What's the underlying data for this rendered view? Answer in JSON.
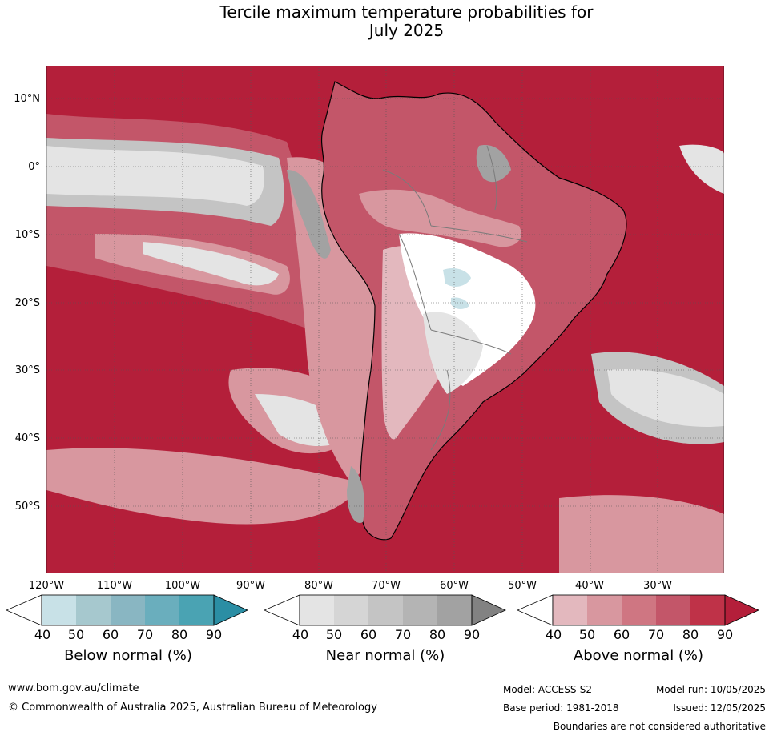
{
  "title_line1": "Tercile maximum temperature probabilities for",
  "title_line2": "July 2025",
  "lat_labels": [
    "10°N",
    "0°",
    "10°S",
    "20°S",
    "30°S",
    "40°S",
    "50°S"
  ],
  "lon_labels": [
    "120°W",
    "110°W",
    "100°W",
    "90°W",
    "80°W",
    "70°W",
    "60°W",
    "50°W",
    "40°W",
    "30°W"
  ],
  "colorbars": [
    {
      "label": "Below normal (%)",
      "ticks": [
        "40",
        "50",
        "60",
        "70",
        "80",
        "90"
      ],
      "colors": [
        "#ffffff",
        "#c8e1e7",
        "#a6c8ce",
        "#89b6c2",
        "#6aaebd",
        "#4aa3b3",
        "#2b8ea4"
      ]
    },
    {
      "label": "Near normal (%)",
      "ticks": [
        "40",
        "50",
        "60",
        "70",
        "80",
        "90"
      ],
      "colors": [
        "#ffffff",
        "#e4e4e4",
        "#d5d5d5",
        "#c4c4c4",
        "#b4b4b4",
        "#a2a2a2",
        "#828282"
      ]
    },
    {
      "label": "Above normal (%)",
      "ticks": [
        "40",
        "50",
        "60",
        "70",
        "80",
        "90"
      ],
      "colors": [
        "#ffffff",
        "#e3b8be",
        "#d8979f",
        "#cf7682",
        "#c35669",
        "#bf3248",
        "#b41f3a"
      ]
    }
  ],
  "map_colors": {
    "ocean_red": "#b41f3a",
    "mid_red": "#c35669",
    "light_red": "#d8979f",
    "pale_red": "#e3b8be",
    "grey_light": "#e4e4e4",
    "grey_mid": "#c4c4c4",
    "grey_dark": "#a2a2a2",
    "blue_light": "#c8e1e7"
  },
  "footer": {
    "url": "www.bom.gov.au/climate",
    "copyright": "© Commonwealth of Australia 2025, Australian Bureau of Meteorology",
    "model": "Model: ACCESS-S2",
    "base_period": "Base period: 1981-2018",
    "model_run": "Model run: 10/05/2025",
    "issued": "Issued: 12/05/2025",
    "disclaimer": "Boundaries are not considered authoritative"
  }
}
